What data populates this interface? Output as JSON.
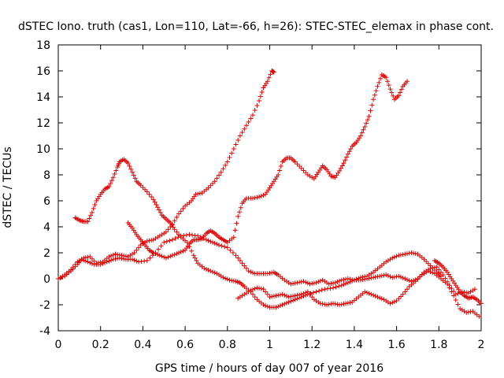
{
  "chart_data": {
    "type": "scatter",
    "title": "dSTEC Iono. truth (cas1, Lon=110, Lat=-66, h=26): STEC-STEC_elemax in phase cont.",
    "xlabel": "GPS time / hours of day 007 of year 2016",
    "ylabel": "dSTEC  / TECUs",
    "xlim": [
      0,
      2
    ],
    "ylim": [
      -4,
      18
    ],
    "xticks": [
      "0",
      "0.2",
      "0.4",
      "0.6",
      "0.8",
      "1",
      "1.2",
      "1.4",
      "1.6",
      "1.8",
      "2"
    ],
    "yticks": [
      "-4",
      "-2",
      "0",
      "2",
      "4",
      "6",
      "8",
      "10",
      "12",
      "14",
      "16",
      "18"
    ],
    "grid": false,
    "legend": "none",
    "marker": "+",
    "color": "#e00000",
    "series": [
      {
        "points": [
          [
            0.0,
            0.0
          ],
          [
            0.03,
            0.2
          ],
          [
            0.06,
            0.6
          ],
          [
            0.09,
            1.1
          ],
          [
            0.11,
            1.5
          ],
          [
            0.14,
            1.3
          ],
          [
            0.17,
            1.1
          ],
          [
            0.2,
            1.1
          ],
          [
            0.23,
            1.3
          ],
          [
            0.26,
            1.5
          ],
          [
            0.29,
            1.6
          ],
          [
            0.32,
            1.5
          ],
          [
            0.35,
            1.5
          ],
          [
            0.38,
            1.3
          ],
          [
            0.42,
            1.4
          ],
          [
            0.46,
            2.0
          ],
          [
            0.5,
            2.8
          ],
          [
            0.54,
            3.0
          ],
          [
            0.58,
            3.3
          ],
          [
            0.62,
            3.4
          ],
          [
            0.66,
            3.3
          ],
          [
            0.7,
            3.0
          ],
          [
            0.73,
            2.8
          ],
          [
            0.76,
            2.6
          ],
          [
            0.8,
            2.4
          ],
          [
            0.84,
            1.8
          ],
          [
            0.87,
            1.2
          ],
          [
            0.9,
            0.6
          ],
          [
            0.93,
            0.4
          ],
          [
            0.96,
            0.4
          ],
          [
            0.99,
            0.4
          ],
          [
            1.02,
            0.5
          ],
          [
            1.04,
            0.3
          ],
          [
            1.07,
            -0.1
          ],
          [
            1.1,
            -0.4
          ],
          [
            1.13,
            -0.3
          ],
          [
            1.16,
            -0.2
          ],
          [
            1.19,
            -0.4
          ],
          [
            1.22,
            -0.3
          ],
          [
            1.25,
            -0.1
          ],
          [
            1.28,
            -0.4
          ],
          [
            1.31,
            -0.3
          ],
          [
            1.34,
            -0.1
          ],
          [
            1.37,
            0.0
          ],
          [
            1.4,
            -0.1
          ],
          [
            1.43,
            -0.1
          ],
          [
            1.46,
            0.0
          ],
          [
            1.49,
            0.1
          ],
          [
            1.52,
            0.2
          ],
          [
            1.55,
            0.3
          ],
          [
            1.58,
            0.1
          ],
          [
            1.61,
            0.2
          ],
          [
            1.64,
            0.0
          ],
          [
            1.67,
            -0.2
          ],
          [
            1.7,
            0.0
          ],
          [
            1.73,
            0.5
          ],
          [
            1.76,
            0.8
          ],
          [
            1.79,
            0.9
          ],
          [
            1.82,
            0.3
          ],
          [
            1.85,
            -0.5
          ],
          [
            1.88,
            -1.2
          ],
          [
            1.91,
            -1.0
          ],
          [
            1.94,
            -1.1
          ],
          [
            1.97,
            -0.8
          ]
        ]
      },
      {
        "points": [
          [
            0.08,
            4.7
          ],
          [
            0.1,
            4.5
          ],
          [
            0.12,
            4.4
          ],
          [
            0.14,
            4.4
          ],
          [
            0.16,
            5.1
          ],
          [
            0.18,
            6.0
          ],
          [
            0.2,
            6.5
          ],
          [
            0.22,
            6.9
          ],
          [
            0.24,
            7.1
          ],
          [
            0.26,
            7.8
          ],
          [
            0.28,
            8.6
          ],
          [
            0.29,
            9.0
          ],
          [
            0.31,
            9.2
          ],
          [
            0.33,
            8.9
          ],
          [
            0.35,
            8.2
          ],
          [
            0.37,
            7.5
          ],
          [
            0.39,
            7.2
          ],
          [
            0.42,
            6.7
          ],
          [
            0.45,
            6.1
          ],
          [
            0.47,
            5.5
          ],
          [
            0.49,
            4.9
          ],
          [
            0.51,
            4.6
          ],
          [
            0.53,
            4.3
          ],
          [
            0.55,
            3.8
          ],
          [
            0.58,
            3.2
          ],
          [
            0.61,
            2.8
          ],
          [
            0.64,
            1.8
          ],
          [
            0.66,
            1.2
          ],
          [
            0.69,
            0.8
          ],
          [
            0.72,
            0.6
          ],
          [
            0.75,
            0.4
          ],
          [
            0.78,
            0.1
          ],
          [
            0.81,
            -0.1
          ],
          [
            0.84,
            -0.2
          ],
          [
            0.86,
            -0.3
          ],
          [
            0.88,
            -0.6
          ],
          [
            0.91,
            -1.0
          ],
          [
            0.94,
            -1.6
          ],
          [
            0.97,
            -2.0
          ],
          [
            1.0,
            -2.2
          ],
          [
            1.03,
            -2.2
          ],
          [
            1.06,
            -2.0
          ],
          [
            1.09,
            -1.8
          ],
          [
            1.12,
            -1.6
          ],
          [
            1.15,
            -1.4
          ],
          [
            1.18,
            -1.2
          ],
          [
            1.22,
            -1.0
          ],
          [
            1.26,
            -0.8
          ],
          [
            1.3,
            -0.7
          ],
          [
            1.34,
            -0.5
          ],
          [
            1.37,
            -0.3
          ],
          [
            1.4,
            -0.1
          ],
          [
            1.43,
            0.1
          ],
          [
            1.46,
            0.2
          ],
          [
            1.49,
            0.5
          ],
          [
            1.52,
            0.9
          ],
          [
            1.55,
            1.3
          ],
          [
            1.58,
            1.6
          ],
          [
            1.61,
            1.8
          ],
          [
            1.64,
            1.9
          ],
          [
            1.67,
            2.0
          ],
          [
            1.7,
            1.9
          ],
          [
            1.73,
            1.5
          ],
          [
            1.76,
            1.0
          ],
          [
            1.79,
            0.5
          ],
          [
            1.81,
            0.2
          ]
        ]
      },
      {
        "points": [
          [
            0.33,
            4.3
          ],
          [
            0.35,
            3.9
          ],
          [
            0.37,
            3.4
          ],
          [
            0.39,
            3.0
          ],
          [
            0.41,
            2.6
          ],
          [
            0.43,
            2.2
          ],
          [
            0.45,
            2.0
          ],
          [
            0.48,
            1.8
          ],
          [
            0.51,
            1.6
          ],
          [
            0.54,
            1.8
          ],
          [
            0.57,
            2.0
          ],
          [
            0.6,
            2.2
          ],
          [
            0.62,
            2.7
          ],
          [
            0.64,
            3.0
          ],
          [
            0.66,
            3.0
          ],
          [
            0.68,
            3.1
          ],
          [
            0.7,
            3.5
          ],
          [
            0.72,
            3.7
          ],
          [
            0.74,
            3.5
          ],
          [
            0.76,
            3.2
          ],
          [
            0.78,
            3.0
          ],
          [
            0.8,
            2.8
          ],
          [
            0.83,
            3.2
          ],
          [
            0.85,
            4.8
          ],
          [
            0.87,
            5.8
          ],
          [
            0.89,
            6.2
          ],
          [
            0.92,
            6.2
          ],
          [
            0.95,
            6.3
          ],
          [
            0.98,
            6.5
          ],
          [
            1.0,
            7.0
          ],
          [
            1.02,
            7.5
          ],
          [
            1.04,
            8.0
          ],
          [
            1.06,
            9.0
          ],
          [
            1.08,
            9.3
          ],
          [
            1.1,
            9.3
          ],
          [
            1.12,
            9.0
          ],
          [
            1.15,
            8.5
          ],
          [
            1.18,
            8.0
          ],
          [
            1.21,
            7.7
          ],
          [
            1.23,
            8.2
          ],
          [
            1.25,
            8.7
          ],
          [
            1.27,
            8.4
          ],
          [
            1.29,
            7.9
          ],
          [
            1.31,
            7.8
          ],
          [
            1.33,
            8.3
          ],
          [
            1.35,
            8.9
          ],
          [
            1.37,
            9.6
          ],
          [
            1.39,
            10.2
          ],
          [
            1.41,
            10.5
          ],
          [
            1.43,
            11.0
          ],
          [
            1.45,
            11.7
          ],
          [
            1.47,
            12.5
          ],
          [
            1.49,
            13.8
          ],
          [
            1.51,
            14.8
          ],
          [
            1.53,
            15.7
          ],
          [
            1.55,
            15.5
          ],
          [
            1.57,
            14.6
          ],
          [
            1.59,
            13.8
          ],
          [
            1.61,
            14.1
          ],
          [
            1.63,
            14.8
          ],
          [
            1.65,
            15.2
          ]
        ]
      },
      {
        "points": [
          [
            0.0,
            0.0
          ],
          [
            0.03,
            0.3
          ],
          [
            0.06,
            0.7
          ],
          [
            0.09,
            1.3
          ],
          [
            0.12,
            1.6
          ],
          [
            0.15,
            1.7
          ],
          [
            0.18,
            1.2
          ],
          [
            0.21,
            1.3
          ],
          [
            0.24,
            1.7
          ],
          [
            0.27,
            1.9
          ],
          [
            0.3,
            1.8
          ],
          [
            0.33,
            1.7
          ],
          [
            0.36,
            2.0
          ],
          [
            0.39,
            2.6
          ],
          [
            0.42,
            2.9
          ],
          [
            0.45,
            3.0
          ],
          [
            0.48,
            3.3
          ],
          [
            0.51,
            3.6
          ],
          [
            0.54,
            4.2
          ],
          [
            0.57,
            5.0
          ],
          [
            0.6,
            5.6
          ],
          [
            0.63,
            6.0
          ],
          [
            0.65,
            6.5
          ],
          [
            0.68,
            6.6
          ],
          [
            0.71,
            7.0
          ],
          [
            0.74,
            7.5
          ],
          [
            0.77,
            8.2
          ],
          [
            0.8,
            9.0
          ],
          [
            0.83,
            10.0
          ],
          [
            0.86,
            11.0
          ],
          [
            0.89,
            11.8
          ],
          [
            0.92,
            12.6
          ],
          [
            0.95,
            13.7
          ],
          [
            0.97,
            14.7
          ],
          [
            0.99,
            15.2
          ],
          [
            1.01,
            16.0
          ],
          [
            1.02,
            15.9
          ]
        ]
      },
      {
        "points": [
          [
            0.85,
            -1.5
          ],
          [
            0.88,
            -1.2
          ],
          [
            0.91,
            -0.9
          ],
          [
            0.94,
            -0.7
          ],
          [
            0.97,
            -0.8
          ],
          [
            1.0,
            -1.4
          ],
          [
            1.03,
            -1.3
          ],
          [
            1.06,
            -1.2
          ],
          [
            1.09,
            -1.4
          ],
          [
            1.12,
            -1.3
          ],
          [
            1.15,
            -1.2
          ],
          [
            1.18,
            -1.0
          ],
          [
            1.21,
            -1.6
          ],
          [
            1.24,
            -1.9
          ],
          [
            1.27,
            -2.0
          ],
          [
            1.3,
            -1.9
          ],
          [
            1.33,
            -2.0
          ],
          [
            1.36,
            -1.9
          ],
          [
            1.39,
            -1.8
          ],
          [
            1.42,
            -1.4
          ],
          [
            1.45,
            -1.0
          ],
          [
            1.48,
            -1.2
          ],
          [
            1.51,
            -1.4
          ],
          [
            1.54,
            -1.6
          ],
          [
            1.57,
            -1.9
          ],
          [
            1.6,
            -1.7
          ],
          [
            1.63,
            -1.2
          ],
          [
            1.66,
            -0.6
          ],
          [
            1.69,
            -0.2
          ],
          [
            1.72,
            0.3
          ],
          [
            1.75,
            0.6
          ],
          [
            1.78,
            0.4
          ],
          [
            1.81,
            0.0
          ],
          [
            1.84,
            -0.4
          ],
          [
            1.87,
            -1.3
          ],
          [
            1.9,
            -2.3
          ],
          [
            1.93,
            -2.6
          ],
          [
            1.96,
            -2.5
          ],
          [
            1.99,
            -2.9
          ]
        ]
      },
      {
        "points": [
          [
            1.78,
            1.4
          ],
          [
            1.8,
            1.2
          ],
          [
            1.82,
            0.9
          ],
          [
            1.84,
            0.5
          ],
          [
            1.86,
            0.0
          ],
          [
            1.88,
            -0.5
          ],
          [
            1.9,
            -1.0
          ],
          [
            1.92,
            -1.3
          ],
          [
            1.94,
            -1.5
          ],
          [
            1.96,
            -1.4
          ],
          [
            1.98,
            -1.6
          ],
          [
            2.0,
            -1.9
          ]
        ]
      }
    ]
  }
}
